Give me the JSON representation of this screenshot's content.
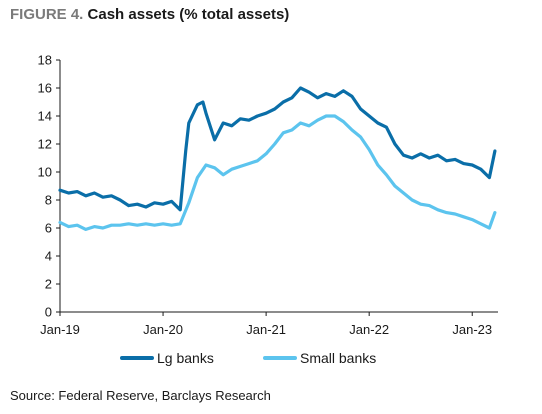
{
  "header": {
    "figure_label": "FIGURE 4.",
    "title": "Cash assets (% total assets)"
  },
  "source": "Source: Federal Reserve, Barclays Research",
  "chart_data": {
    "type": "line",
    "title": "Cash assets (% total assets)",
    "ylim": [
      0,
      18
    ],
    "yticks": [
      "0",
      "2",
      "4",
      "6",
      "8",
      "10",
      "12",
      "14",
      "16",
      "18"
    ],
    "xlim": [
      "2019-01",
      "2023-04"
    ],
    "xticks": [
      {
        "label": "Jan-19",
        "x": "2019-01"
      },
      {
        "label": "Jan-20",
        "x": "2020-01"
      },
      {
        "label": "Jan-21",
        "x": "2021-01"
      },
      {
        "label": "Jan-22",
        "x": "2022-01"
      },
      {
        "label": "Jan-23",
        "x": "2023-01"
      }
    ],
    "grid": false,
    "legend": "bottom",
    "series": [
      {
        "name": "Lg banks",
        "color": "#0a6ea8",
        "points": [
          [
            "2019-01",
            8.7
          ],
          [
            "2019-02",
            8.5
          ],
          [
            "2019-03",
            8.6
          ],
          [
            "2019-04",
            8.3
          ],
          [
            "2019-05",
            8.5
          ],
          [
            "2019-06",
            8.2
          ],
          [
            "2019-07",
            8.3
          ],
          [
            "2019-08",
            8.0
          ],
          [
            "2019-09",
            7.6
          ],
          [
            "2019-10",
            7.7
          ],
          [
            "2019-11",
            7.5
          ],
          [
            "2019-12",
            7.8
          ],
          [
            "2020-01",
            7.7
          ],
          [
            "2020-02",
            7.9
          ],
          [
            "2020-03",
            7.3
          ],
          [
            "2020-03-20",
            11.5
          ],
          [
            "2020-04",
            13.5
          ],
          [
            "2020-05",
            14.8
          ],
          [
            "2020-05-20",
            15.0
          ],
          [
            "2020-06",
            14.2
          ],
          [
            "2020-07",
            12.3
          ],
          [
            "2020-08",
            13.5
          ],
          [
            "2020-09",
            13.3
          ],
          [
            "2020-10",
            13.8
          ],
          [
            "2020-11",
            13.7
          ],
          [
            "2020-12",
            14.0
          ],
          [
            "2021-01",
            14.2
          ],
          [
            "2021-02",
            14.5
          ],
          [
            "2021-03",
            15.0
          ],
          [
            "2021-04",
            15.3
          ],
          [
            "2021-05",
            16.0
          ],
          [
            "2021-06",
            15.7
          ],
          [
            "2021-07",
            15.3
          ],
          [
            "2021-08",
            15.6
          ],
          [
            "2021-09",
            15.4
          ],
          [
            "2021-10",
            15.8
          ],
          [
            "2021-11",
            15.4
          ],
          [
            "2021-12",
            14.5
          ],
          [
            "2022-01",
            14.0
          ],
          [
            "2022-02",
            13.5
          ],
          [
            "2022-03",
            13.2
          ],
          [
            "2022-04",
            12.0
          ],
          [
            "2022-05",
            11.2
          ],
          [
            "2022-06",
            11.0
          ],
          [
            "2022-07",
            11.3
          ],
          [
            "2022-08",
            11.0
          ],
          [
            "2022-09",
            11.2
          ],
          [
            "2022-10",
            10.8
          ],
          [
            "2022-11",
            10.9
          ],
          [
            "2022-12",
            10.6
          ],
          [
            "2023-01",
            10.5
          ],
          [
            "2023-02",
            10.2
          ],
          [
            "2023-03",
            9.6
          ],
          [
            "2023-03-20",
            11.5
          ]
        ]
      },
      {
        "name": "Small banks",
        "color": "#5cc4ee",
        "points": [
          [
            "2019-01",
            6.4
          ],
          [
            "2019-02",
            6.1
          ],
          [
            "2019-03",
            6.2
          ],
          [
            "2019-04",
            5.9
          ],
          [
            "2019-05",
            6.1
          ],
          [
            "2019-06",
            6.0
          ],
          [
            "2019-07",
            6.2
          ],
          [
            "2019-08",
            6.2
          ],
          [
            "2019-09",
            6.3
          ],
          [
            "2019-10",
            6.2
          ],
          [
            "2019-11",
            6.3
          ],
          [
            "2019-12",
            6.2
          ],
          [
            "2020-01",
            6.3
          ],
          [
            "2020-02",
            6.2
          ],
          [
            "2020-03",
            6.3
          ],
          [
            "2020-04",
            7.8
          ],
          [
            "2020-05",
            9.6
          ],
          [
            "2020-06",
            10.5
          ],
          [
            "2020-07",
            10.3
          ],
          [
            "2020-08",
            9.8
          ],
          [
            "2020-09",
            10.2
          ],
          [
            "2020-10",
            10.4
          ],
          [
            "2020-11",
            10.6
          ],
          [
            "2020-12",
            10.8
          ],
          [
            "2021-01",
            11.3
          ],
          [
            "2021-02",
            12.0
          ],
          [
            "2021-03",
            12.8
          ],
          [
            "2021-04",
            13.0
          ],
          [
            "2021-05",
            13.5
          ],
          [
            "2021-06",
            13.3
          ],
          [
            "2021-07",
            13.7
          ],
          [
            "2021-08",
            14.0
          ],
          [
            "2021-09",
            14.0
          ],
          [
            "2021-10",
            13.6
          ],
          [
            "2021-11",
            13.0
          ],
          [
            "2021-12",
            12.5
          ],
          [
            "2022-01",
            11.6
          ],
          [
            "2022-02",
            10.5
          ],
          [
            "2022-03",
            9.8
          ],
          [
            "2022-04",
            9.0
          ],
          [
            "2022-05",
            8.5
          ],
          [
            "2022-06",
            8.0
          ],
          [
            "2022-07",
            7.7
          ],
          [
            "2022-08",
            7.6
          ],
          [
            "2022-09",
            7.3
          ],
          [
            "2022-10",
            7.1
          ],
          [
            "2022-11",
            7.0
          ],
          [
            "2022-12",
            6.8
          ],
          [
            "2023-01",
            6.6
          ],
          [
            "2023-02",
            6.3
          ],
          [
            "2023-03",
            6.0
          ],
          [
            "2023-03-20",
            7.1
          ]
        ]
      }
    ]
  }
}
